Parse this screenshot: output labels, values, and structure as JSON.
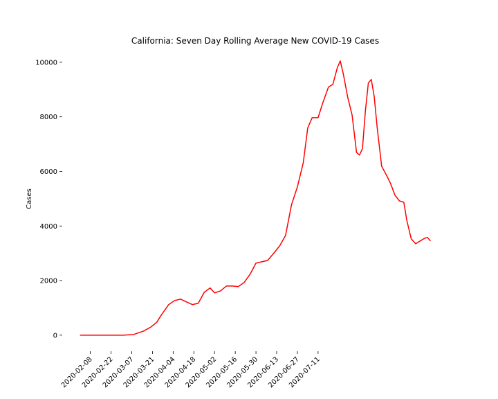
{
  "chart_data": {
    "type": "line",
    "title": "California: Seven Day Rolling Average New COVID-19 Cases",
    "y_label": "Cases",
    "x": [
      "2020-02-01",
      "2020-02-15",
      "2020-03-01",
      "2020-03-08",
      "2020-03-15",
      "2020-03-20",
      "2020-03-24",
      "2020-03-27",
      "2020-04-01",
      "2020-04-05",
      "2020-04-09",
      "2020-04-13",
      "2020-04-17",
      "2020-04-21",
      "2020-04-25",
      "2020-04-29",
      "2020-05-02",
      "2020-05-06",
      "2020-05-10",
      "2020-05-14",
      "2020-05-18",
      "2020-05-22",
      "2020-05-26",
      "2020-05-30",
      "2020-06-03",
      "2020-06-07",
      "2020-06-11",
      "2020-06-15",
      "2020-06-19",
      "2020-06-23",
      "2020-06-27",
      "2020-07-01",
      "2020-07-04",
      "2020-07-07",
      "2020-07-11",
      "2020-07-14",
      "2020-07-18",
      "2020-07-21",
      "2020-07-24",
      "2020-07-26",
      "2020-07-28",
      "2020-07-31",
      "2020-08-03",
      "2020-08-06",
      "2020-08-08",
      "2020-08-10",
      "2020-08-12",
      "2020-08-14",
      "2020-08-16",
      "2020-08-18",
      "2020-08-20",
      "2020-08-23",
      "2020-08-26",
      "2020-08-29",
      "2020-09-01",
      "2020-09-04",
      "2020-09-07",
      "2020-09-09",
      "2020-09-12",
      "2020-09-15",
      "2020-09-18",
      "2020-09-21",
      "2020-09-23",
      "2020-09-25"
    ],
    "series": [
      {
        "name": "Cases",
        "color": "#ff0000",
        "values": [
          0,
          0,
          0,
          20,
          150,
          300,
          480,
          740,
          1120,
          1270,
          1320,
          1220,
          1120,
          1170,
          1570,
          1730,
          1550,
          1620,
          1800,
          1800,
          1780,
          1930,
          2230,
          2640,
          2690,
          2740,
          3000,
          3270,
          3650,
          4770,
          5430,
          6320,
          7590,
          7970,
          7970,
          8480,
          9090,
          9190,
          9800,
          10050,
          9590,
          8730,
          8070,
          6700,
          6600,
          6830,
          8220,
          9240,
          9370,
          8730,
          7590,
          6190,
          5890,
          5560,
          5130,
          4920,
          4870,
          4210,
          3530,
          3350,
          3450,
          3550,
          3580,
          3450
        ]
      }
    ],
    "xlim": [
      "2020-01-20",
      "2020-10-07"
    ],
    "xticks": [
      "2020-02-08",
      "2020-02-22",
      "2020-03-07",
      "2020-03-21",
      "2020-04-04",
      "2020-04-18",
      "2020-05-02",
      "2020-05-16",
      "2020-05-30",
      "2020-06-13",
      "2020-06-27",
      "2020-07-11"
    ],
    "ylim": [
      -740,
      10530
    ],
    "yticks": [
      0,
      2000,
      4000,
      6000,
      8000,
      10000
    ]
  }
}
